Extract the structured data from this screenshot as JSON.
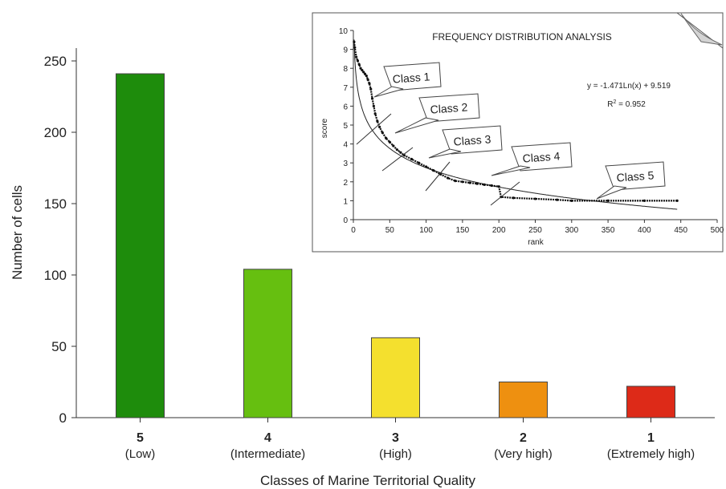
{
  "chart_data": [
    {
      "type": "bar",
      "title": "",
      "xlabel": "Classes of Marine Territorial Quality",
      "ylabel": "Number of cells",
      "ylim": [
        0,
        250
      ],
      "yticks": [
        "0",
        "50",
        "100",
        "150",
        "200",
        "250"
      ],
      "grid": false,
      "categories": [
        {
          "code": "5",
          "name": "(Low)",
          "color": "#1e8c0c"
        },
        {
          "code": "4",
          "name": "(Intermediate)",
          "color": "#66bf10"
        },
        {
          "code": "3",
          "name": "(High)",
          "color": "#f4e02e"
        },
        {
          "code": "2",
          "name": "(Very high)",
          "color": "#ee9010"
        },
        {
          "code": "1",
          "name": "(Extremely high)",
          "color": "#dd2a18"
        }
      ],
      "values": [
        241,
        104,
        56,
        25,
        22
      ]
    },
    {
      "type": "scatter",
      "title": "FREQUENCY DISTRIBUTION ANALYSIS",
      "xlabel": "rank",
      "ylabel": "score",
      "xlim": [
        0,
        500
      ],
      "ylim": [
        0,
        10
      ],
      "xticks": [
        "0",
        "50",
        "100",
        "150",
        "200",
        "250",
        "300",
        "350",
        "400",
        "450",
        "500"
      ],
      "yticks": [
        "0",
        "1",
        "2",
        "3",
        "4",
        "5",
        "6",
        "7",
        "8",
        "9",
        "10"
      ],
      "equation": "y = -1.471Ln(x) + 9.519",
      "r2_label": "R",
      "r2_sup": "2",
      "r2_value": " = 0.952",
      "trendline": {
        "a": -1.471,
        "b": 9.519,
        "x_range": [
          1,
          445
        ]
      },
      "classes": [
        "Class 1",
        "Class 2",
        "Class 3",
        "Class 4",
        "Class 5"
      ],
      "observed_points": [
        [
          1,
          9.4
        ],
        [
          2,
          9.1
        ],
        [
          4,
          8.6
        ],
        [
          6,
          8.4
        ],
        [
          8,
          8.2
        ],
        [
          10,
          8.0
        ],
        [
          12,
          7.9
        ],
        [
          14,
          7.8
        ],
        [
          16,
          7.7
        ],
        [
          18,
          7.6
        ],
        [
          20,
          7.4
        ],
        [
          22,
          7.2
        ],
        [
          24,
          6.9
        ],
        [
          26,
          6.4
        ],
        [
          28,
          6.0
        ],
        [
          30,
          5.6
        ],
        [
          33,
          5.2
        ],
        [
          36,
          4.9
        ],
        [
          40,
          4.6
        ],
        [
          45,
          4.3
        ],
        [
          50,
          4.1
        ],
        [
          55,
          3.9
        ],
        [
          60,
          3.7
        ],
        [
          65,
          3.55
        ],
        [
          70,
          3.4
        ],
        [
          80,
          3.2
        ],
        [
          90,
          3.0
        ],
        [
          100,
          2.8
        ],
        [
          110,
          2.6
        ],
        [
          120,
          2.4
        ],
        [
          130,
          2.2
        ],
        [
          140,
          2.05
        ],
        [
          150,
          2.0
        ],
        [
          160,
          1.95
        ],
        [
          170,
          1.9
        ],
        [
          180,
          1.85
        ],
        [
          190,
          1.8
        ],
        [
          200,
          1.75
        ],
        [
          203,
          1.2
        ],
        [
          220,
          1.15
        ],
        [
          250,
          1.1
        ],
        [
          280,
          1.05
        ],
        [
          300,
          1.0
        ],
        [
          350,
          1.0
        ],
        [
          400,
          1.0
        ],
        [
          445,
          1.0
        ]
      ]
    }
  ]
}
